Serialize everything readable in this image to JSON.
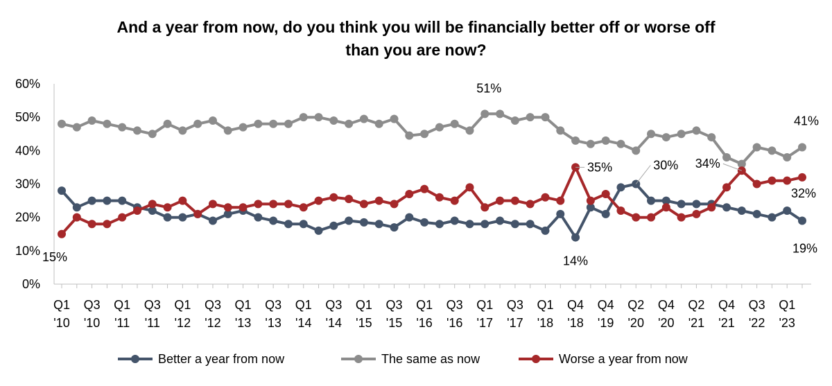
{
  "chart_data": {
    "type": "line",
    "title_lines": [
      "And a year from now, do you think you will be financially better off or worse off",
      "than you are now?"
    ],
    "ylim": [
      0,
      60
    ],
    "y_ticks": [
      "0%",
      "10%",
      "20%",
      "30%",
      "40%",
      "50%",
      "60%"
    ],
    "x_tick_labels": [
      {
        "i": 0,
        "top": "Q1",
        "bottom": "'10"
      },
      {
        "i": 2,
        "top": "Q3",
        "bottom": "'10"
      },
      {
        "i": 4,
        "top": "Q1",
        "bottom": "'11"
      },
      {
        "i": 6,
        "top": "Q3",
        "bottom": "'11"
      },
      {
        "i": 8,
        "top": "Q1",
        "bottom": "'12"
      },
      {
        "i": 10,
        "top": "Q3",
        "bottom": "'12"
      },
      {
        "i": 12,
        "top": "Q1",
        "bottom": "'13"
      },
      {
        "i": 14,
        "top": "Q3",
        "bottom": "'13"
      },
      {
        "i": 16,
        "top": "Q1",
        "bottom": "'14"
      },
      {
        "i": 18,
        "top": "Q3",
        "bottom": "'14"
      },
      {
        "i": 20,
        "top": "Q1",
        "bottom": "'15"
      },
      {
        "i": 22,
        "top": "Q3",
        "bottom": "'15"
      },
      {
        "i": 24,
        "top": "Q1",
        "bottom": "'16"
      },
      {
        "i": 26,
        "top": "Q3",
        "bottom": "'16"
      },
      {
        "i": 28,
        "top": "Q1",
        "bottom": "'17"
      },
      {
        "i": 30,
        "top": "Q3",
        "bottom": "'17"
      },
      {
        "i": 32,
        "top": "Q1",
        "bottom": "'18"
      },
      {
        "i": 34,
        "top": "Q4",
        "bottom": "'18"
      },
      {
        "i": 36,
        "top": "Q4",
        "bottom": "'19"
      },
      {
        "i": 38,
        "top": "Q2",
        "bottom": "'20"
      },
      {
        "i": 40,
        "top": "Q4",
        "bottom": "'20"
      },
      {
        "i": 42,
        "top": "Q2",
        "bottom": "'21"
      },
      {
        "i": 44,
        "top": "Q4",
        "bottom": "'21"
      },
      {
        "i": 46,
        "top": "Q3",
        "bottom": "'22"
      },
      {
        "i": 48,
        "top": "Q1",
        "bottom": "'23"
      }
    ],
    "series": [
      {
        "name": "Better a year from now",
        "color": "#44546A",
        "values": [
          28,
          23,
          25,
          25,
          25,
          23,
          22,
          20,
          20,
          21,
          19,
          21,
          22,
          20,
          19,
          18,
          18,
          16,
          17.5,
          19,
          18.5,
          18,
          17,
          20,
          18.5,
          18,
          19,
          18,
          18,
          19,
          18,
          18,
          16,
          21,
          14,
          23,
          21,
          29,
          30,
          25,
          25,
          24,
          24,
          24,
          23,
          22,
          21,
          20,
          22,
          19
        ]
      },
      {
        "name": "The same as now",
        "color": "#8C8C8C",
        "values": [
          48,
          47,
          49,
          48,
          47,
          46,
          45,
          48,
          46,
          48,
          49,
          46,
          47,
          48,
          48,
          48,
          50,
          50,
          49,
          48,
          49.5,
          48,
          49.5,
          44.5,
          45,
          47,
          48,
          46,
          51,
          51,
          49,
          50,
          50,
          46,
          43,
          42,
          43,
          42,
          40,
          45,
          44,
          45,
          46,
          44,
          38,
          36,
          41,
          40,
          38,
          41
        ]
      },
      {
        "name": "Worse a year from now",
        "color": "#A6282A",
        "values": [
          15,
          20,
          18,
          18,
          20,
          22,
          24,
          23,
          25,
          21,
          24,
          23,
          23,
          24,
          24,
          24,
          23,
          25,
          26,
          25.5,
          24,
          25,
          24,
          27,
          28.5,
          26,
          25,
          29,
          23,
          25,
          25,
          24,
          26,
          25,
          35,
          25,
          27,
          22,
          20,
          20,
          23,
          20,
          21,
          23,
          29,
          34,
          30,
          31,
          31,
          32
        ]
      }
    ],
    "annotations": [
      {
        "text": "15%",
        "series": 2,
        "i": 0
      },
      {
        "text": "51%",
        "series": 1,
        "i": 28
      },
      {
        "text": "14%",
        "series": 0,
        "i": 34
      },
      {
        "text": "35%",
        "series": 2,
        "i": 34
      },
      {
        "text": "30%",
        "series": 0,
        "i": 38
      },
      {
        "text": "34%",
        "series": 2,
        "i": 45
      },
      {
        "text": "41%",
        "series": 1,
        "i": 49
      },
      {
        "text": "32%",
        "series": 2,
        "i": 49
      },
      {
        "text": "19%",
        "series": 0,
        "i": 49
      }
    ],
    "legend_position": "bottom",
    "grid": false
  }
}
